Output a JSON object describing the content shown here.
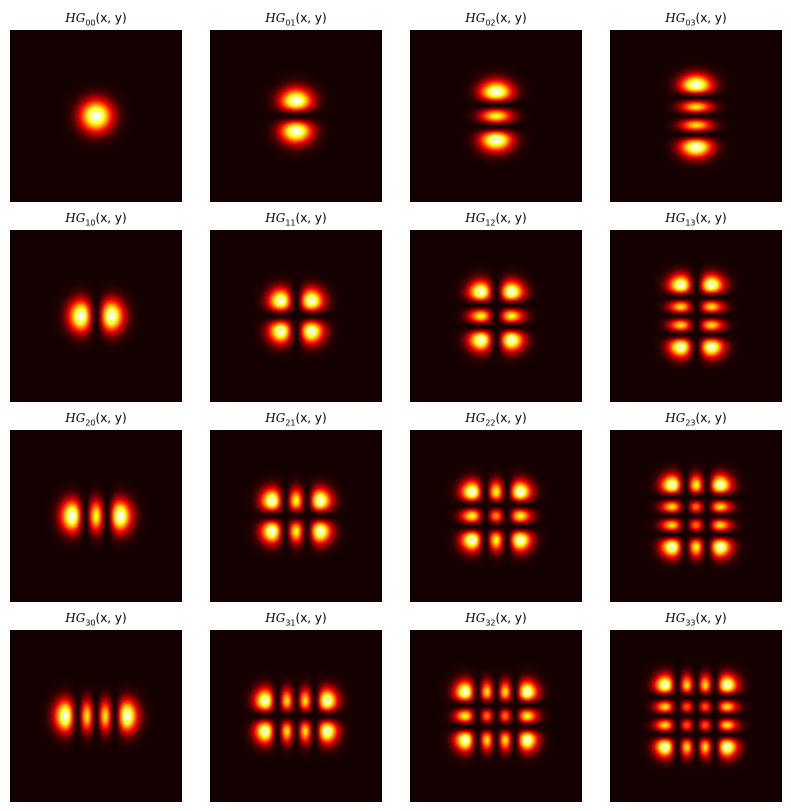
{
  "chart_data": {
    "type": "heatmap",
    "colormap": "hot",
    "background_color": "#0b0000",
    "title_template": "HG_{mn}(x, y)",
    "rows": [
      [
        {
          "title_base": "HG",
          "title_sub": "00",
          "title_args": "(x, y)",
          "m": 0,
          "n": 0
        },
        {
          "title_base": "HG",
          "title_sub": "01",
          "title_args": "(x, y)",
          "m": 0,
          "n": 1
        },
        {
          "title_base": "HG",
          "title_sub": "02",
          "title_args": "(x, y)",
          "m": 0,
          "n": 2
        },
        {
          "title_base": "HG",
          "title_sub": "03",
          "title_args": "(x, y)",
          "m": 0,
          "n": 3
        }
      ],
      [
        {
          "title_base": "HG",
          "title_sub": "10",
          "title_args": "(x, y)",
          "m": 1,
          "n": 0
        },
        {
          "title_base": "HG",
          "title_sub": "11",
          "title_args": "(x, y)",
          "m": 1,
          "n": 1
        },
        {
          "title_base": "HG",
          "title_sub": "12",
          "title_args": "(x, y)",
          "m": 1,
          "n": 2
        },
        {
          "title_base": "HG",
          "title_sub": "13",
          "title_args": "(x, y)",
          "m": 1,
          "n": 3
        }
      ],
      [
        {
          "title_base": "HG",
          "title_sub": "20",
          "title_args": "(x, y)",
          "m": 2,
          "n": 0
        },
        {
          "title_base": "HG",
          "title_sub": "21",
          "title_args": "(x, y)",
          "m": 2,
          "n": 1
        },
        {
          "title_base": "HG",
          "title_sub": "22",
          "title_args": "(x, y)",
          "m": 2,
          "n": 2
        },
        {
          "title_base": "HG",
          "title_sub": "23",
          "title_args": "(x, y)",
          "m": 2,
          "n": 3
        }
      ],
      [
        {
          "title_base": "HG",
          "title_sub": "30",
          "title_args": "(x, y)",
          "m": 3,
          "n": 0
        },
        {
          "title_base": "HG",
          "title_sub": "31",
          "title_args": "(x, y)",
          "m": 3,
          "n": 1
        },
        {
          "title_base": "HG",
          "title_sub": "32",
          "title_args": "(x, y)",
          "m": 3,
          "n": 2
        },
        {
          "title_base": "HG",
          "title_sub": "33",
          "title_args": "(x, y)",
          "m": 3,
          "n": 3
        }
      ]
    ],
    "axes_visible": false,
    "grid": false,
    "legend": "none"
  }
}
